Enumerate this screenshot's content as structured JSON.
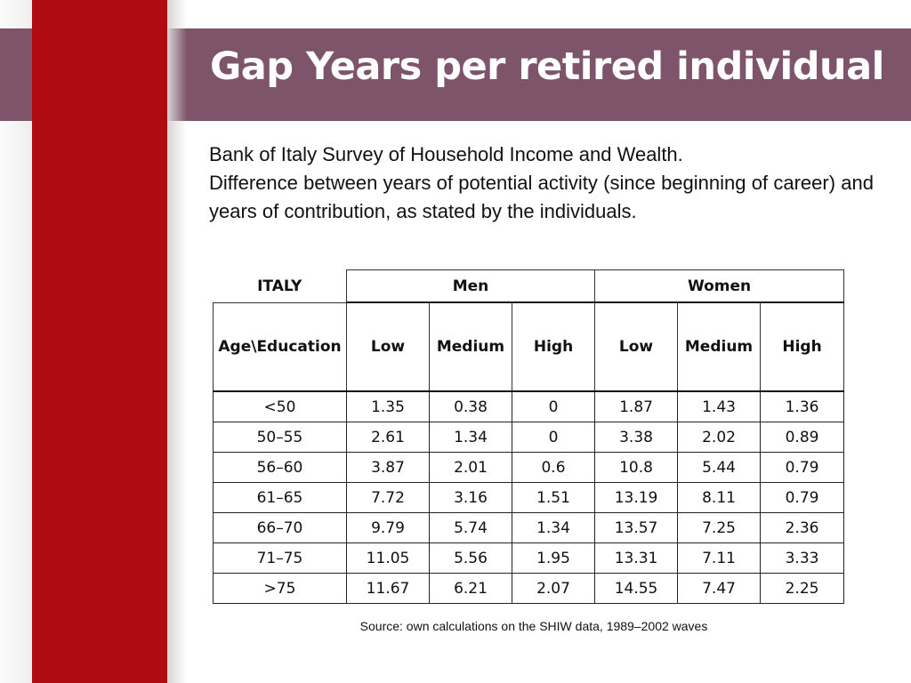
{
  "title": "Gap Years per retired individual",
  "description": {
    "line1": "Bank of Italy Survey of Household Income and Wealth.",
    "line2": "Difference between years of potential activity (since beginning of career) and years of contribution, as stated by the individuals."
  },
  "table": {
    "country_label": "ITALY",
    "group_men": "Men",
    "group_women": "Women",
    "row_label_header": "Age\\Education",
    "columns": [
      "Low",
      "Medium",
      "High",
      "Low",
      "Medium",
      "High"
    ],
    "rows": [
      {
        "age": "<50",
        "values": [
          "1.35",
          "0.38",
          "0",
          "1.87",
          "1.43",
          "1.36"
        ]
      },
      {
        "age": "50–55",
        "values": [
          "2.61",
          "1.34",
          "0",
          "3.38",
          "2.02",
          "0.89"
        ]
      },
      {
        "age": "56–60",
        "values": [
          "3.87",
          "2.01",
          "0.6",
          "10.8",
          "5.44",
          "0.79"
        ]
      },
      {
        "age": "61–65",
        "values": [
          "7.72",
          "3.16",
          "1.51",
          "13.19",
          "8.11",
          "0.79"
        ]
      },
      {
        "age": "66–70",
        "values": [
          "9.79",
          "5.74",
          "1.34",
          "13.57",
          "7.25",
          "2.36"
        ]
      },
      {
        "age": "71–75",
        "values": [
          "11.05",
          "5.56",
          "1.95",
          "13.31",
          "7.11",
          "3.33"
        ]
      },
      {
        "age": ">75",
        "values": [
          "11.67",
          "6.21",
          "2.07",
          "14.55",
          "7.47",
          "2.25"
        ]
      }
    ]
  },
  "source": "Source: own calculations on the SHIW data, 1989–2002 waves",
  "colors": {
    "accent_red": "#b00b12",
    "title_bar": "#7e546b",
    "title_text": "#ffffff"
  }
}
